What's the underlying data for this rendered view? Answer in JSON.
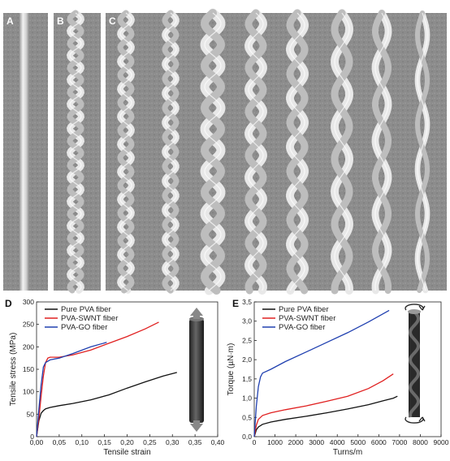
{
  "panels": {
    "a": {
      "label": "A"
    },
    "b": {
      "label": "B"
    },
    "c": {
      "label": "C"
    },
    "d": {
      "label": "D"
    },
    "e": {
      "label": "E"
    }
  },
  "colors": {
    "pure_pva": "#111111",
    "pva_swnt": "#e02020",
    "pva_go": "#2040b0",
    "sem_background": "#8a8a8a"
  },
  "micrographs": {
    "a": {
      "fibers": 1,
      "style": "straight"
    },
    "b": {
      "fibers": 1,
      "style": "twisted"
    },
    "c": {
      "fibers": 8,
      "style": "twisted"
    }
  },
  "chart_data": [
    {
      "panel": "D",
      "type": "line",
      "xlabel": "Tensile strain",
      "ylabel": "Tensile stress (MPa)",
      "xlim": [
        0,
        0.4
      ],
      "ylim": [
        0,
        300
      ],
      "xticks": [
        "0,00",
        "0,05",
        "0,10",
        "0,15",
        "0,20",
        "0,25",
        "0,30",
        "0,35",
        "0,40"
      ],
      "yticks": [
        "0",
        "50",
        "100",
        "150",
        "200",
        "250",
        "300"
      ],
      "grid": false,
      "legend_position": "top-left",
      "series": [
        {
          "name": "Pure PVA fiber",
          "color": "#111111",
          "x": [
            0,
            0.005,
            0.01,
            0.015,
            0.02,
            0.03,
            0.05,
            0.08,
            0.12,
            0.16,
            0.2,
            0.24,
            0.28,
            0.31
          ],
          "y": [
            0,
            35,
            52,
            58,
            62,
            65,
            69,
            74,
            82,
            93,
            108,
            122,
            135,
            143
          ]
        },
        {
          "name": "PVA-SWNT fiber",
          "color": "#e02020",
          "x": [
            0,
            0.005,
            0.01,
            0.015,
            0.02,
            0.025,
            0.03,
            0.05,
            0.08,
            0.12,
            0.16,
            0.2,
            0.24,
            0.27
          ],
          "y": [
            0,
            40,
            90,
            135,
            165,
            175,
            177,
            177,
            182,
            193,
            208,
            223,
            240,
            255
          ]
        },
        {
          "name": "PVA-GO fiber",
          "color": "#2040b0",
          "x": [
            0,
            0.005,
            0.01,
            0.015,
            0.02,
            0.03,
            0.05,
            0.08,
            0.12,
            0.155
          ],
          "y": [
            0,
            60,
            115,
            155,
            165,
            171,
            175,
            185,
            200,
            210
          ]
        }
      ],
      "inset": {
        "description": "fiber under tension",
        "icon": "tension-arrows-icon"
      }
    },
    {
      "panel": "E",
      "type": "line",
      "xlabel": "Turns/m",
      "ylabel": "Torque (µN·m)",
      "xlim": [
        0,
        9000
      ],
      "ylim": [
        0,
        3.5
      ],
      "xticks": [
        "0",
        "1000",
        "2000",
        "3000",
        "4000",
        "5000",
        "6000",
        "7000",
        "8000",
        "9000"
      ],
      "yticks": [
        "0,0",
        "0,5",
        "1,0",
        "1,5",
        "2,0",
        "2,5",
        "3,0",
        "3,5"
      ],
      "grid": false,
      "legend_position": "top-left",
      "series": [
        {
          "name": "Pure PVA fiber",
          "color": "#111111",
          "x": [
            0,
            100,
            200,
            400,
            800,
            1500,
            2500,
            3500,
            4500,
            5500,
            6200,
            6700,
            6900
          ],
          "y": [
            0,
            0.18,
            0.25,
            0.32,
            0.38,
            0.45,
            0.53,
            0.62,
            0.72,
            0.83,
            0.93,
            1.0,
            1.05
          ]
        },
        {
          "name": "PVA-SWNT fiber",
          "color": "#e02020",
          "x": [
            0,
            100,
            200,
            400,
            800,
            1500,
            2500,
            3500,
            4500,
            5500,
            6200,
            6700
          ],
          "y": [
            0,
            0.3,
            0.45,
            0.55,
            0.62,
            0.7,
            0.8,
            0.92,
            1.05,
            1.25,
            1.45,
            1.63
          ]
        },
        {
          "name": "PVA-GO fiber",
          "color": "#2040b0",
          "x": [
            0,
            100,
            200,
            300,
            400,
            800,
            1500,
            2500,
            3500,
            4500,
            5500,
            6500
          ],
          "y": [
            0,
            0.8,
            1.3,
            1.55,
            1.65,
            1.75,
            1.95,
            2.2,
            2.45,
            2.7,
            2.98,
            3.28
          ]
        }
      ],
      "inset": {
        "description": "twisted fiber under torsion",
        "icon": "rotation-arrows-icon"
      }
    }
  ]
}
